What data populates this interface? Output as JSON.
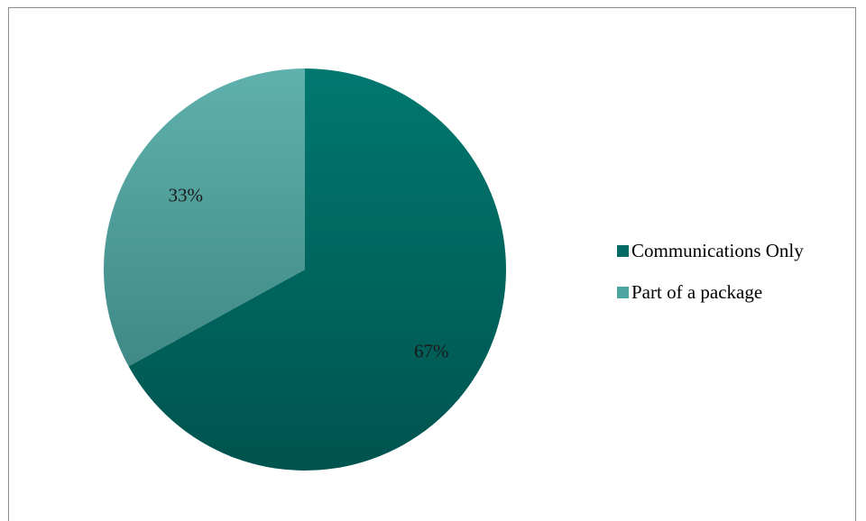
{
  "chart_data": {
    "type": "pie",
    "title": "",
    "slices": [
      {
        "label": "Communications Only",
        "value": 67,
        "display": "67%",
        "color": "#006b64"
      },
      {
        "label": "Part of a package",
        "value": 33,
        "display": "33%",
        "color": "#4ea6a3"
      }
    ],
    "legend_position": "right"
  },
  "legend": {
    "items": [
      {
        "label": "Communications Only",
        "color": "#006b64"
      },
      {
        "label": "Part of a package",
        "color": "#4ea6a3"
      }
    ]
  }
}
